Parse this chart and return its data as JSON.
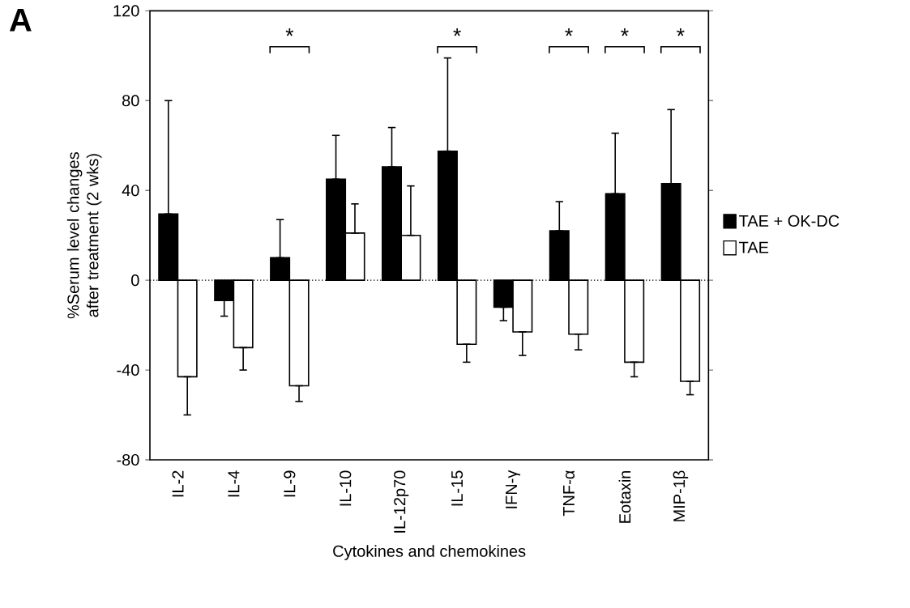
{
  "chart_data": {
    "type": "bar",
    "xlabel": "Cytokines and chemokines",
    "ylabel": "%Serum level changes after treatment (2 wks)",
    "categories": [
      "IL-2",
      "IL-4",
      "IL-9",
      "IL-10",
      "IL-12p70",
      "IL-15",
      "IFN-γ",
      "TNF-α",
      "Eotaxin",
      "MIP-1β"
    ],
    "series": [
      {
        "name": "TAE + OK-DC",
        "color": "#000000",
        "values": [
          29.5,
          -9,
          10,
          45,
          50.5,
          57.5,
          -12,
          22,
          38.5,
          43
        ],
        "errors": [
          [
            29.5,
            80
          ],
          [
            -16,
            -9
          ],
          [
            10,
            27
          ],
          [
            45,
            64.5
          ],
          [
            50.5,
            68
          ],
          [
            57.5,
            99
          ],
          [
            -18,
            -12
          ],
          [
            22,
            35
          ],
          [
            38.5,
            65.5
          ],
          [
            43,
            76
          ]
        ]
      },
      {
        "name": "TAE",
        "color": "#ffffff",
        "values": [
          -43,
          -30,
          -47,
          21,
          20,
          -28.5,
          -23,
          -24,
          -36.5,
          -45
        ],
        "errors": [
          [
            -60,
            -43
          ],
          [
            -40,
            -30
          ],
          [
            -54,
            -47
          ],
          [
            21,
            34
          ],
          [
            20,
            42
          ],
          [
            -36.5,
            -28.5
          ],
          [
            -33.5,
            -23
          ],
          [
            -31,
            -24
          ],
          [
            -43,
            -36.5
          ],
          [
            -51,
            -45
          ]
        ]
      }
    ],
    "ylim": [
      -80,
      120
    ],
    "yticks": [
      -80,
      -40,
      0,
      40,
      80,
      120
    ],
    "ref_lines": [
      {
        "axis": "y",
        "value": 0,
        "line_style": "dotted"
      }
    ],
    "legend": "right",
    "annotations": [
      "*",
      "*",
      "*",
      "*",
      "*",
      "A"
    ]
  }
}
